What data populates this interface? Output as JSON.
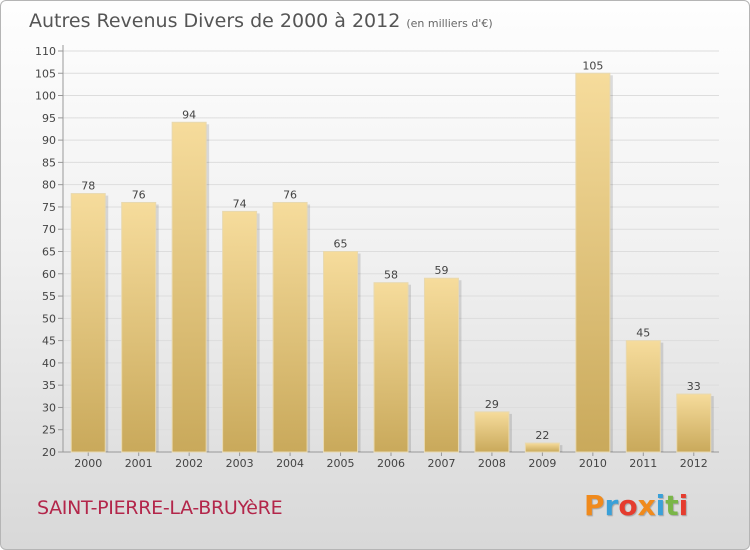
{
  "header": {
    "title": "Autres Revenus Divers de 2000 à 2012",
    "unit": "(en milliers d'€)"
  },
  "footer": {
    "commune": "SAINT-PIERRE-LA-BRUYèRE",
    "logo": "Proxiti"
  },
  "colors": {
    "bar_light": "#f6dc9c",
    "bar_dark": "#c9a95b",
    "commune_text": "#b3264a",
    "logo_letters": [
      "#f08a1c",
      "#3aa0d8",
      "#e53c2e",
      "#f08a1c",
      "#3aa0d8",
      "#7ab648",
      "#e53c2e"
    ]
  },
  "chart_data": {
    "type": "bar",
    "categories": [
      "2000",
      "2001",
      "2002",
      "2003",
      "2004",
      "2005",
      "2006",
      "2007",
      "2008",
      "2009",
      "2010",
      "2011",
      "2012"
    ],
    "values": [
      78,
      76,
      94,
      74,
      76,
      65,
      58,
      59,
      29,
      22,
      105,
      45,
      33
    ],
    "data_labels": [
      "78",
      "76",
      "94",
      "74",
      "76",
      "65",
      "58",
      "59",
      "29",
      "22",
      "105",
      "45",
      "33"
    ],
    "ylim": [
      20,
      110
    ],
    "yticks": [
      20,
      25,
      30,
      35,
      40,
      45,
      50,
      55,
      60,
      65,
      70,
      75,
      80,
      85,
      90,
      95,
      100,
      105,
      110
    ],
    "grid": true
  }
}
